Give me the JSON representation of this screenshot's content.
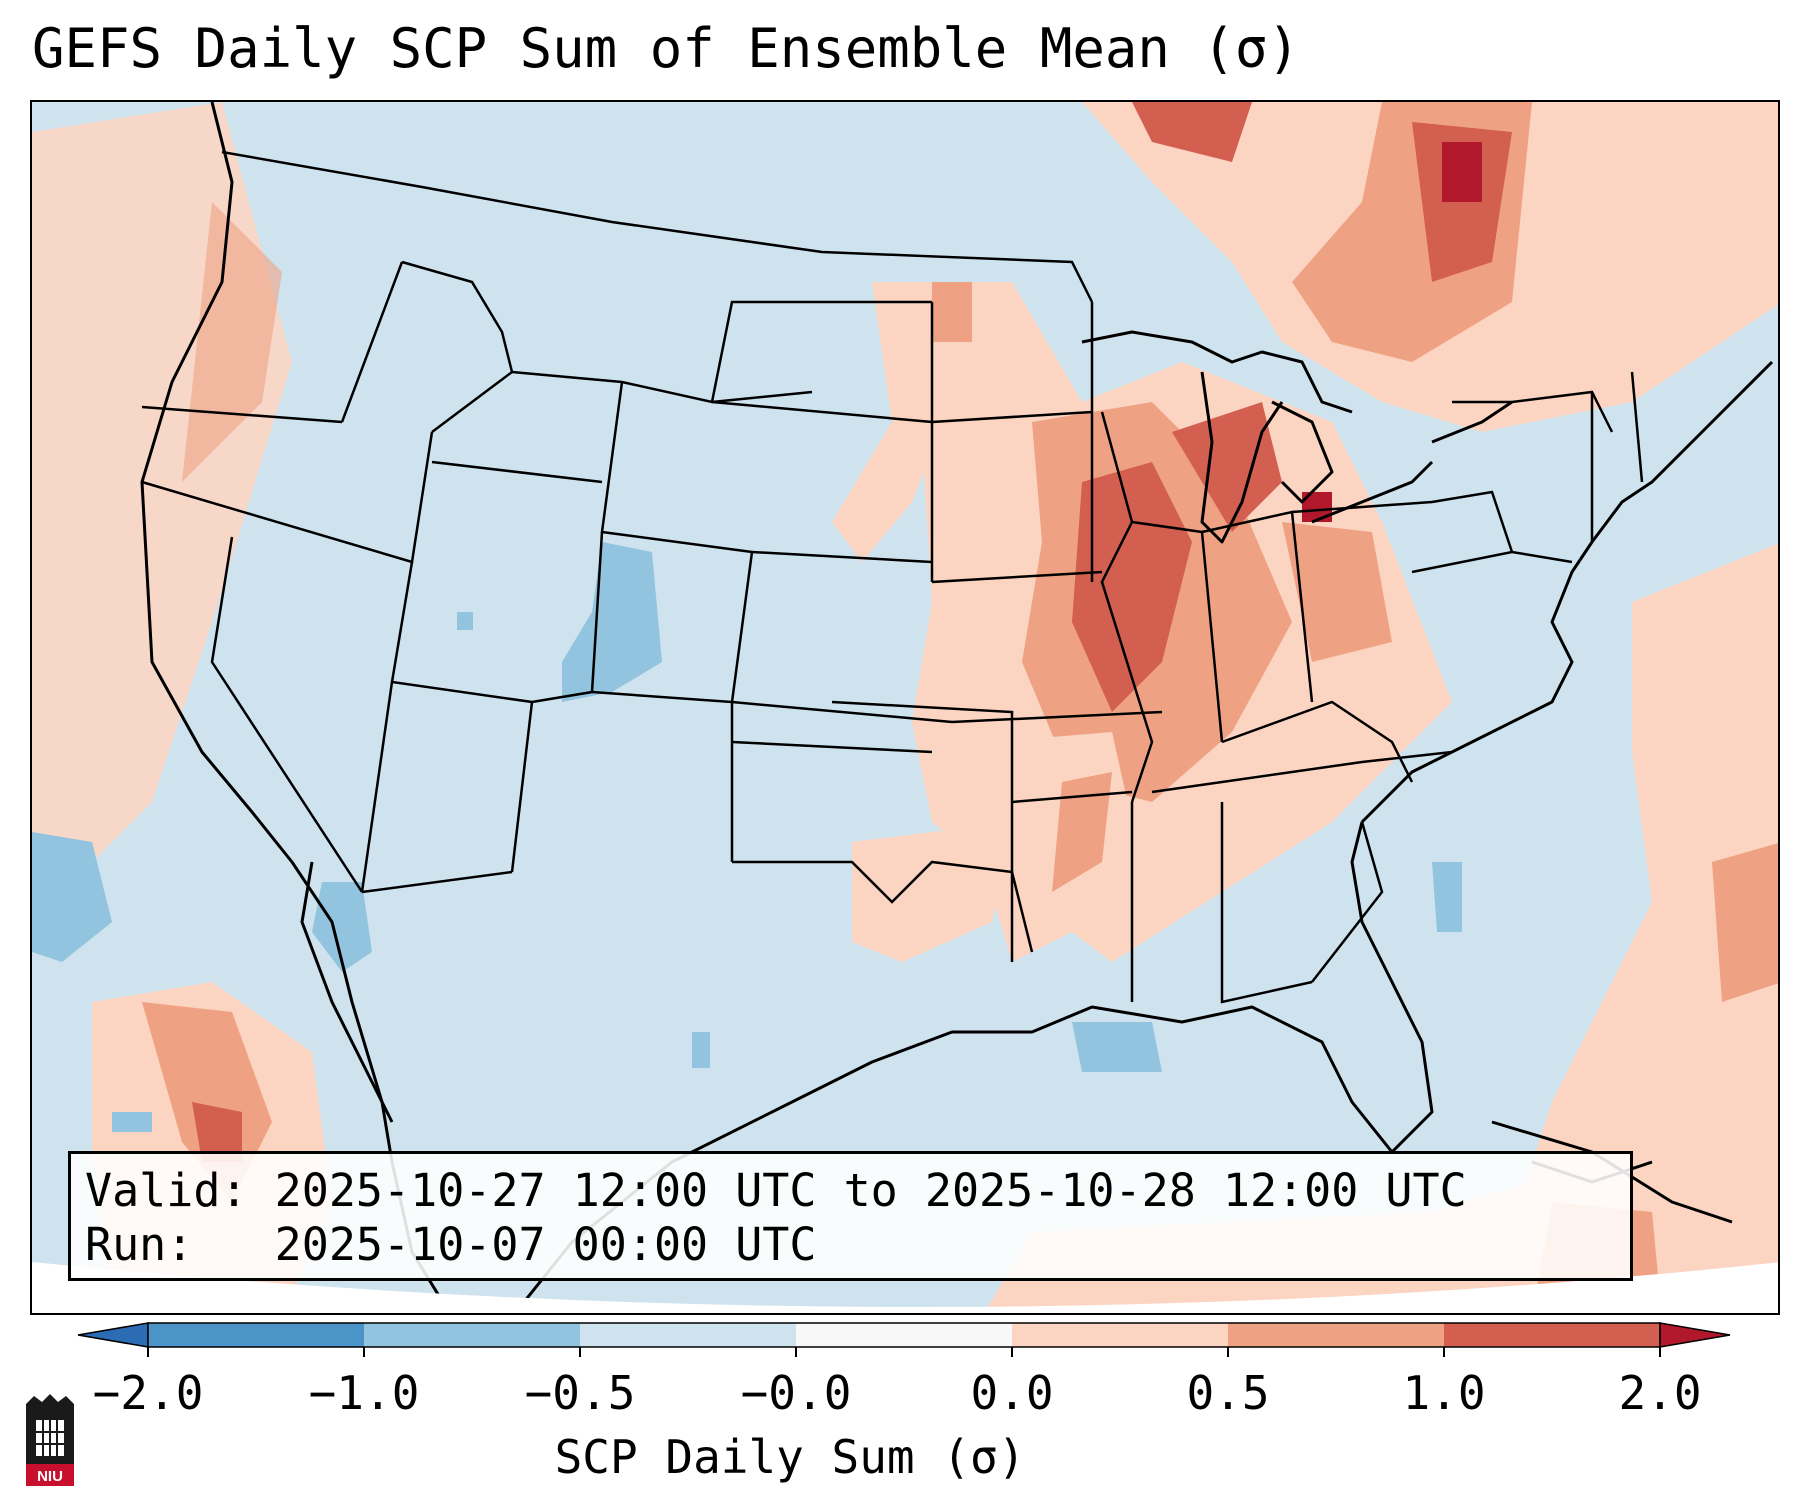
{
  "title": "GEFS Daily SCP Sum of Ensemble Mean (σ)",
  "map": {
    "region": "Contiguous United States",
    "background_color": "#cfe3ef",
    "land_line_color": "#000000"
  },
  "info_box": {
    "valid_line": "Valid: 2025-10-27 12:00 UTC to 2025-10-28 12:00 UTC",
    "run_line": "Run:   2025-10-07 00:00 UTC"
  },
  "colorbar": {
    "label": "SCP Daily Sum (σ)",
    "ticks": [
      "−2.0",
      "−1.0",
      "−0.5",
      "−0.0",
      "0.0",
      "0.5",
      "1.0",
      "2.0"
    ],
    "bins": [
      {
        "range": "< -2.0",
        "color": "#2c6cb4"
      },
      {
        "range": "-2.0 to -1.0",
        "color": "#4a94c8"
      },
      {
        "range": "-1.0 to -0.5",
        "color": "#92c4df"
      },
      {
        "range": "-0.5 to -0.0",
        "color": "#cfe3ef"
      },
      {
        "range": "-0.0 to 0.0",
        "color": "#f8f8f8"
      },
      {
        "range": "0.0 to 0.5",
        "color": "#fbd5c2"
      },
      {
        "range": "0.5 to 1.0",
        "color": "#efa283"
      },
      {
        "range": "1.0 to 2.0",
        "color": "#d25f4f"
      },
      {
        "range": "> 2.0",
        "color": "#b2182b"
      }
    ]
  },
  "logo": {
    "text": "NIU"
  }
}
